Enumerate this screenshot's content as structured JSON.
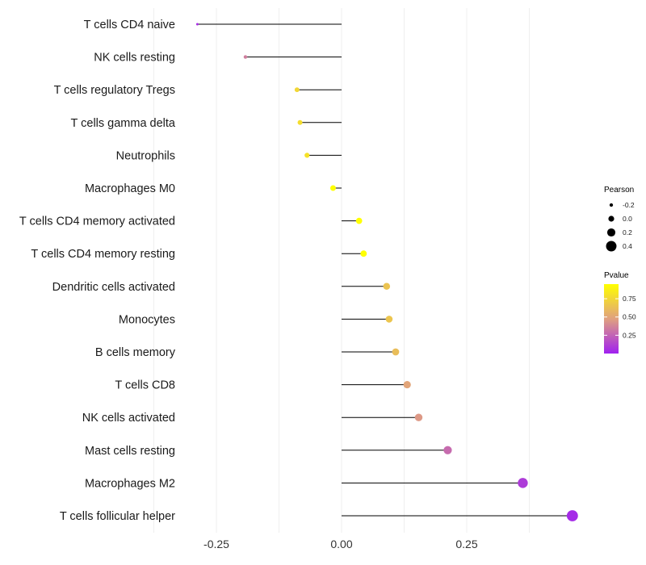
{
  "chart_data": {
    "type": "lollipop",
    "title": "",
    "xlabel": "",
    "ylabel": "",
    "xlim": [
      -0.29,
      0.47
    ],
    "x_ticks": [
      -0.25,
      0.0,
      0.25
    ],
    "x_tick_labels": [
      "-0.25",
      "0.00",
      "0.25"
    ],
    "grid": true,
    "categories": [
      "T cells CD4 naive",
      "NK cells resting",
      "T cells regulatory  Tregs",
      "T cells gamma delta",
      "Neutrophils",
      "Macrophages M0",
      "T cells CD4 memory activated",
      "T cells CD4 memory resting",
      "Dendritic cells activated",
      "Monocytes",
      "B cells memory",
      "T cells CD8",
      "NK cells activated",
      "Mast cells resting",
      "Macrophages M2",
      "T cells follicular helper"
    ],
    "pearson": [
      -0.288,
      -0.192,
      -0.089,
      -0.083,
      -0.069,
      -0.017,
      0.035,
      0.044,
      0.09,
      0.095,
      0.108,
      0.131,
      0.154,
      0.212,
      0.362,
      0.461
    ],
    "pvalue": [
      0.05,
      0.35,
      0.75,
      0.78,
      0.8,
      0.97,
      0.96,
      0.95,
      0.65,
      0.66,
      0.62,
      0.5,
      0.45,
      0.28,
      0.1,
      0.04
    ],
    "legend_size": {
      "title": "Pearson",
      "breaks": [
        -0.2,
        0.0,
        0.2,
        0.4
      ],
      "labels": [
        "-0.2",
        "0.0",
        "0.2",
        "0.4"
      ]
    },
    "legend_color": {
      "title": "Pvalue",
      "breaks": [
        0.75,
        0.5,
        0.25
      ],
      "labels": [
        "0.75",
        "0.50",
        "0.25"
      ],
      "range": [
        0.0,
        0.95
      ],
      "low_color": "#a020f0",
      "mid_color": "#e0a080",
      "high_color": "#ffff00"
    },
    "legend_position": "right"
  }
}
